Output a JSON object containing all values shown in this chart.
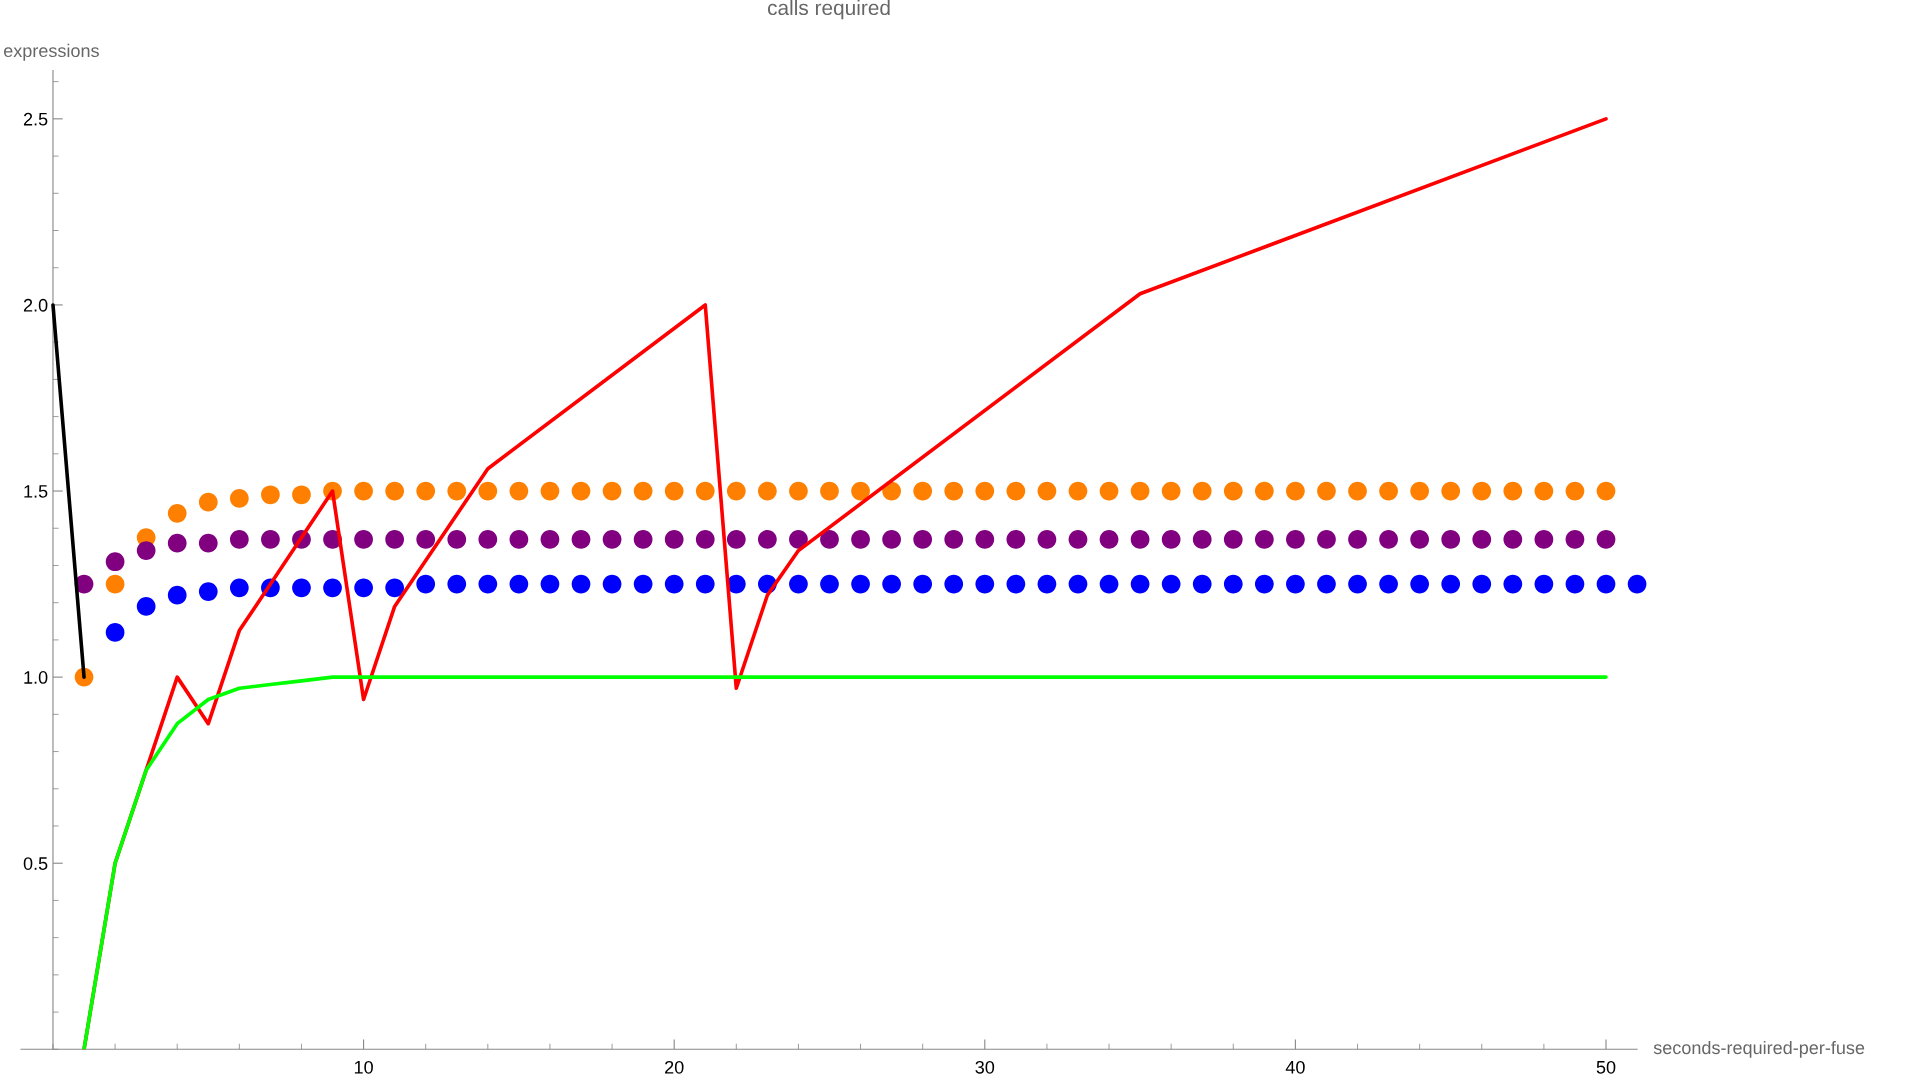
{
  "chart_data": {
    "type": "scatter",
    "title": "calls required",
    "xlabel": "seconds-required-per-fuse",
    "ylabel": "expressions",
    "xlim": [
      -1.03,
      51
    ],
    "ylim": [
      0,
      2.63
    ],
    "xticks": [
      10,
      20,
      30,
      40,
      50
    ],
    "yticks": [
      0.5,
      {
        "value": 1.0,
        "label": "1.0"
      },
      1.5,
      {
        "value": 2.0,
        "label": "2.0"
      },
      2.5
    ],
    "grid": false,
    "legend": false,
    "series": [
      {
        "marker": "circle",
        "color": "#ff8000",
        "x": [
          1,
          2,
          3,
          4,
          5,
          6,
          7,
          8,
          9,
          10,
          11,
          12,
          13,
          14,
          15,
          16,
          17,
          18,
          19,
          20,
          21,
          22,
          23,
          24,
          25,
          26,
          27,
          28,
          29,
          30,
          31,
          32,
          33,
          34,
          35,
          36,
          37,
          38,
          39,
          40,
          41,
          42,
          43,
          44,
          45,
          46,
          47,
          48,
          49,
          50
        ],
        "values": [
          1.0,
          1.25,
          1.375,
          1.44,
          1.47,
          1.48,
          1.49,
          1.49,
          1.5,
          1.5,
          1.5,
          1.5,
          1.5,
          1.5,
          1.5,
          1.5,
          1.5,
          1.5,
          1.5,
          1.5,
          1.5,
          1.5,
          1.5,
          1.5,
          1.5,
          1.5,
          1.5,
          1.5,
          1.5,
          1.5,
          1.5,
          1.5,
          1.5,
          1.5,
          1.5,
          1.5,
          1.5,
          1.5,
          1.5,
          1.5,
          1.5,
          1.5,
          1.5,
          1.5,
          1.5,
          1.5,
          1.5,
          1.5,
          1.5,
          1.5
        ]
      },
      {
        "marker": "circle",
        "color": "#800080",
        "x": [
          1,
          2,
          3,
          4,
          5,
          6,
          7,
          8,
          9,
          10,
          11,
          12,
          13,
          14,
          15,
          16,
          17,
          18,
          19,
          20,
          21,
          22,
          23,
          24,
          25,
          26,
          27,
          28,
          29,
          30,
          31,
          32,
          33,
          34,
          35,
          36,
          37,
          38,
          39,
          40,
          41,
          42,
          43,
          44,
          45,
          46,
          47,
          48,
          49,
          50
        ],
        "values": [
          1.25,
          1.31,
          1.34,
          1.36,
          1.36,
          1.37,
          1.37,
          1.37,
          1.37,
          1.37,
          1.37,
          1.37,
          1.37,
          1.37,
          1.37,
          1.37,
          1.37,
          1.37,
          1.37,
          1.37,
          1.37,
          1.37,
          1.37,
          1.37,
          1.37,
          1.37,
          1.37,
          1.37,
          1.37,
          1.37,
          1.37,
          1.37,
          1.37,
          1.37,
          1.37,
          1.37,
          1.37,
          1.37,
          1.37,
          1.37,
          1.37,
          1.37,
          1.37,
          1.37,
          1.37,
          1.37,
          1.37,
          1.37,
          1.37,
          1.37
        ]
      },
      {
        "marker": "circle",
        "color": "#0000ff",
        "x": [
          2,
          3,
          4,
          5,
          6,
          7,
          8,
          9,
          10,
          11,
          12,
          13,
          14,
          15,
          16,
          17,
          18,
          19,
          20,
          21,
          22,
          23,
          24,
          25,
          26,
          27,
          28,
          29,
          30,
          31,
          32,
          33,
          34,
          35,
          36,
          37,
          38,
          39,
          40,
          41,
          42,
          43,
          44,
          45,
          46,
          47,
          48,
          49,
          50,
          51
        ],
        "values": [
          1.12,
          1.19,
          1.22,
          1.23,
          1.24,
          1.24,
          1.24,
          1.24,
          1.24,
          1.24,
          1.25,
          1.25,
          1.25,
          1.25,
          1.25,
          1.25,
          1.25,
          1.25,
          1.25,
          1.25,
          1.25,
          1.25,
          1.25,
          1.25,
          1.25,
          1.25,
          1.25,
          1.25,
          1.25,
          1.25,
          1.25,
          1.25,
          1.25,
          1.25,
          1.25,
          1.25,
          1.25,
          1.25,
          1.25,
          1.25,
          1.25,
          1.25,
          1.25,
          1.25,
          1.25,
          1.25,
          1.25,
          1.25,
          1.25,
          1.25
        ]
      },
      {
        "type": "line",
        "color": "#00ff00",
        "x": [
          1,
          2,
          3,
          4,
          5,
          6,
          7,
          8,
          9,
          10,
          11,
          50
        ],
        "values": [
          0,
          0.5,
          0.75,
          0.875,
          0.94,
          0.97,
          0.98,
          0.99,
          1.0,
          1.0,
          1.0,
          1.0
        ]
      },
      {
        "type": "line",
        "color": "#ff0000",
        "x": [
          1,
          2,
          3,
          4,
          5,
          6,
          9,
          10,
          11,
          14,
          21,
          22,
          23,
          24,
          35,
          50
        ],
        "values": [
          0,
          0.5,
          0.75,
          1.0,
          0.875,
          1.125,
          1.5,
          0.94,
          1.19,
          1.56,
          2.0,
          0.97,
          1.22,
          1.34,
          2.03,
          2.5
        ]
      },
      {
        "type": "line",
        "color": "#000000",
        "x": [
          0,
          1
        ],
        "values": [
          2.0,
          1.0
        ]
      }
    ]
  }
}
